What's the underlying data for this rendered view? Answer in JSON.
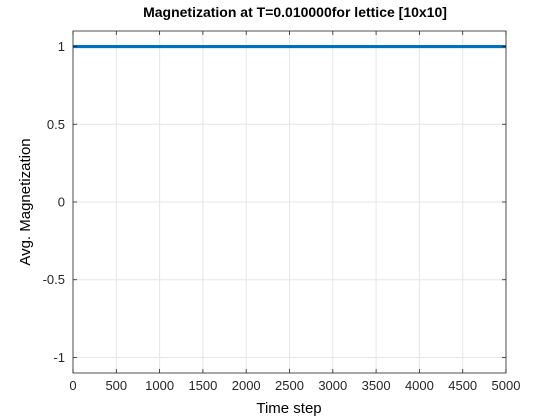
{
  "chart_data": {
    "type": "line",
    "title": "Magnetization at T=0.010000for lettice [10x10]",
    "xlabel": "Time step",
    "ylabel": "Avg. Magnetization",
    "xlim": [
      0,
      5000
    ],
    "ylim": [
      -1.1,
      1.1
    ],
    "xticks": [
      0,
      500,
      1000,
      1500,
      2000,
      2500,
      3000,
      3500,
      4000,
      4500,
      5000
    ],
    "xtick_labels": [
      "0",
      "500",
      "1000",
      "1500",
      "2000",
      "2500",
      "3000",
      "3500",
      "4000",
      "4500",
      "5000"
    ],
    "yticks": [
      1,
      0.5,
      0,
      -0.5,
      -1
    ],
    "ytick_labels": [
      "1",
      "0.5",
      "0",
      "-0.5",
      "-1"
    ],
    "grid": true,
    "series": [
      {
        "color": "#0072BD",
        "x": [
          0,
          5000
        ],
        "y": [
          1,
          1
        ]
      }
    ]
  }
}
